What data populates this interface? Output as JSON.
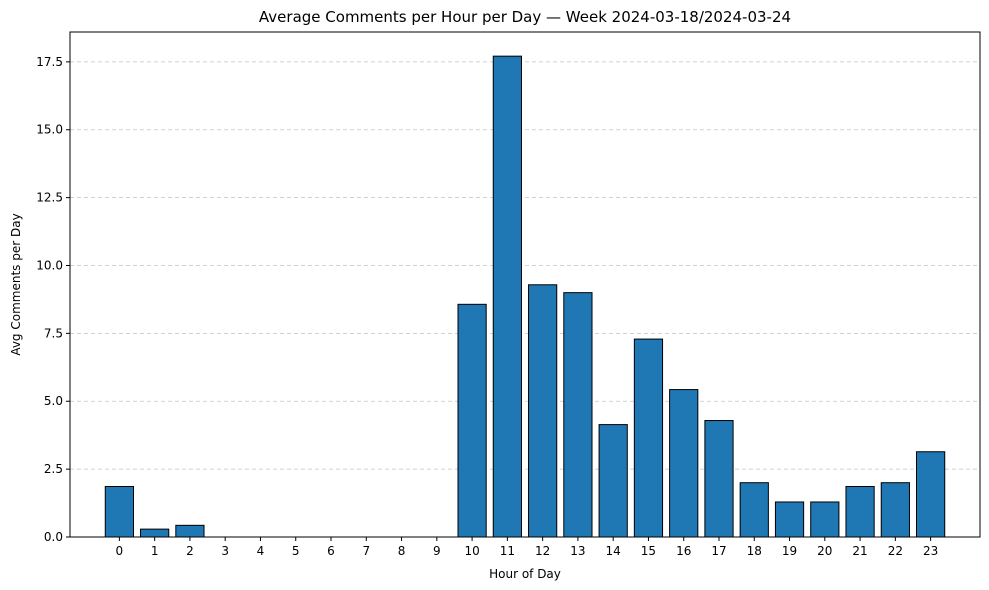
{
  "chart_data": {
    "type": "bar",
    "title": "Average Comments per Hour per Day — Week 2024-03-18/2024-03-24",
    "xlabel": "Hour of Day",
    "ylabel": "Avg Comments per Day",
    "categories": [
      "0",
      "1",
      "2",
      "3",
      "4",
      "5",
      "6",
      "7",
      "8",
      "9",
      "10",
      "11",
      "12",
      "13",
      "14",
      "15",
      "16",
      "17",
      "18",
      "19",
      "20",
      "21",
      "22",
      "23"
    ],
    "values": [
      1.86,
      0.29,
      0.43,
      0,
      0,
      0,
      0,
      0,
      0,
      0,
      8.57,
      17.71,
      9.29,
      9.0,
      4.14,
      7.29,
      5.43,
      4.29,
      2.0,
      1.29,
      1.29,
      1.86,
      2.0,
      3.14
    ],
    "ylim": [
      0,
      18.6
    ],
    "yticks": [
      "0.0",
      "2.5",
      "5.0",
      "7.5",
      "10.0",
      "12.5",
      "15.0",
      "17.5"
    ],
    "grid": "y-dashed",
    "bar_color": "#1f77b4",
    "edge_color": "#000000"
  }
}
